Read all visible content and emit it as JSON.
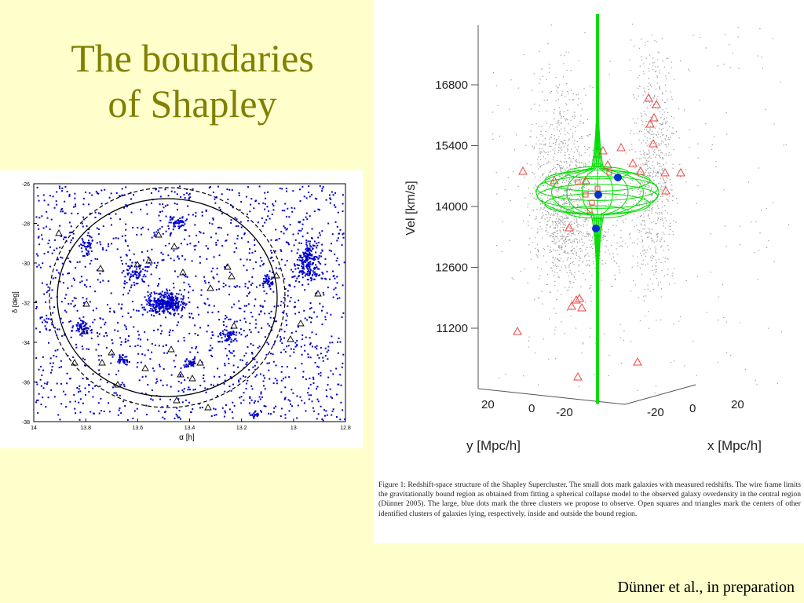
{
  "slide": {
    "title_line1": "The boundaries",
    "title_line2": "of Shapley",
    "credit": "Dünner et al., in preparation"
  },
  "left_figure": {
    "xlabel": "α [h]",
    "ylabel": "δ [deg]",
    "x_ticks": [
      "14",
      "13.8",
      "13.6",
      "13.4",
      "13.2",
      "13",
      "12.8"
    ],
    "y_ticks": [
      "-26",
      "-28",
      "-30",
      "-32",
      "-34",
      "-36",
      "-38"
    ],
    "point_color": "#0000cc"
  },
  "right_figure": {
    "zlabel": "Vel [km/s]",
    "ylabel": "y [Mpc/h]",
    "xlabel": "x [Mpc/h]",
    "z_ticks": [
      "16800",
      "15400",
      "14000",
      "12600",
      "11200"
    ],
    "y_ticks": [
      "20",
      "0",
      "-20"
    ],
    "x_ticks": [
      "-20",
      "0",
      "20"
    ],
    "wireframe_color": "#00dd00",
    "cluster_color": "#0033cc",
    "marker_color": "#ee4444",
    "caption": "Figure 1: Redshift-space structure of the Shapley Supercluster. The small dots mark galaxies with measured redshifts. The wire frame limits the gravitationally bound region as obtained from fitting a spherical collapse model to the observed galaxy overdensity in the central region (Dünner 2005). The large, blue dots mark the three clusters we propose to observe. Open squares and triangles mark the centers of other identified clusters of galaxies lying, respectively, inside and outside the bound region."
  }
}
